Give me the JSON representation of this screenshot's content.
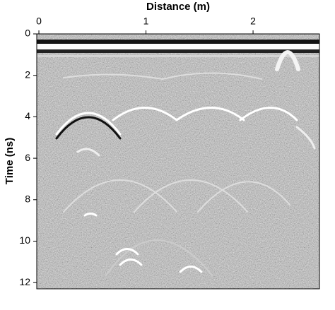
{
  "chart_data": {
    "type": "radargram",
    "x_label": "Distance (m)",
    "y_label": "Time (ns)",
    "xlim": [
      -0.02,
      2.62
    ],
    "xticks": [
      0,
      1,
      2
    ],
    "ylim": [
      0,
      12.3
    ],
    "yticks": [
      0,
      2,
      4,
      6,
      8,
      10,
      12
    ],
    "y_reversed": true
  }
}
